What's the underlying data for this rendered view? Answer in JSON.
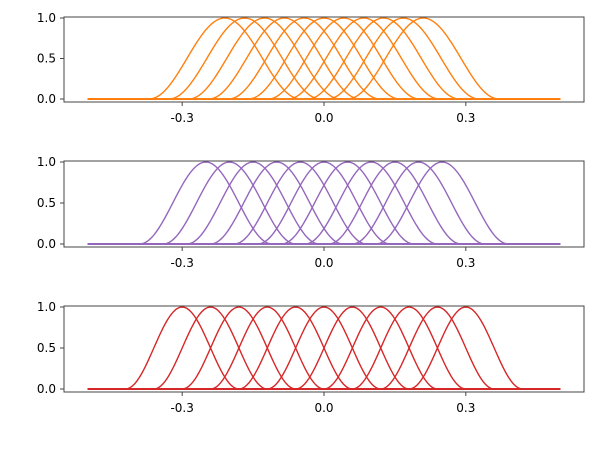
{
  "chart_data": [
    {
      "type": "line",
      "title": "",
      "xlabel": "",
      "ylabel": "",
      "xlim": [
        -0.5,
        0.5
      ],
      "ylim": [
        0,
        1
      ],
      "x_ticks": [
        -0.3,
        0.0,
        0.3
      ],
      "x_tick_labels": [
        "-0.3",
        "0.0",
        "0.3"
      ],
      "y_ticks": [
        0.0,
        0.5,
        1.0
      ],
      "y_tick_labels": [
        "0.0",
        "0.5",
        "1.0"
      ],
      "color": "#ff7f0e",
      "curve_domain": [
        -0.5,
        0.5
      ],
      "curve_shape": "raised-cosine bump of height 1",
      "bump_half_width": 0.16,
      "bump_centers": [
        -0.21,
        -0.168,
        -0.126,
        -0.084,
        -0.042,
        0.0,
        0.042,
        0.084,
        0.126,
        0.168,
        0.21
      ],
      "series_count": 11
    },
    {
      "type": "line",
      "title": "",
      "xlabel": "",
      "ylabel": "",
      "xlim": [
        -0.5,
        0.5
      ],
      "ylim": [
        0,
        1
      ],
      "x_ticks": [
        -0.3,
        0.0,
        0.3
      ],
      "x_tick_labels": [
        "-0.3",
        "0.0",
        "0.3"
      ],
      "y_ticks": [
        0.0,
        0.5,
        1.0
      ],
      "y_tick_labels": [
        "0.0",
        "0.5",
        "1.0"
      ],
      "color": "#9467bd",
      "curve_domain": [
        -0.5,
        0.5
      ],
      "curve_shape": "raised-cosine bump of height 1",
      "bump_half_width": 0.14,
      "bump_centers": [
        -0.25,
        -0.2,
        -0.15,
        -0.1,
        -0.05,
        0.0,
        0.05,
        0.1,
        0.15,
        0.2,
        0.25
      ],
      "series_count": 11
    },
    {
      "type": "line",
      "title": "",
      "xlabel": "",
      "ylabel": "",
      "xlim": [
        -0.5,
        0.5
      ],
      "ylim": [
        0,
        1
      ],
      "x_ticks": [
        -0.3,
        0.0,
        0.3
      ],
      "x_tick_labels": [
        "-0.3",
        "0.0",
        "0.3"
      ],
      "y_ticks": [
        0.0,
        0.5,
        1.0
      ],
      "y_tick_labels": [
        "0.0",
        "0.5",
        "1.0"
      ],
      "color": "#d62728",
      "curve_domain": [
        -0.5,
        0.5
      ],
      "curve_shape": "raised-cosine bump of height 1",
      "bump_half_width": 0.12,
      "bump_centers": [
        -0.3,
        -0.24,
        -0.18,
        -0.12,
        -0.06,
        0.0,
        0.06,
        0.12,
        0.18,
        0.24,
        0.3
      ],
      "series_count": 11
    }
  ]
}
